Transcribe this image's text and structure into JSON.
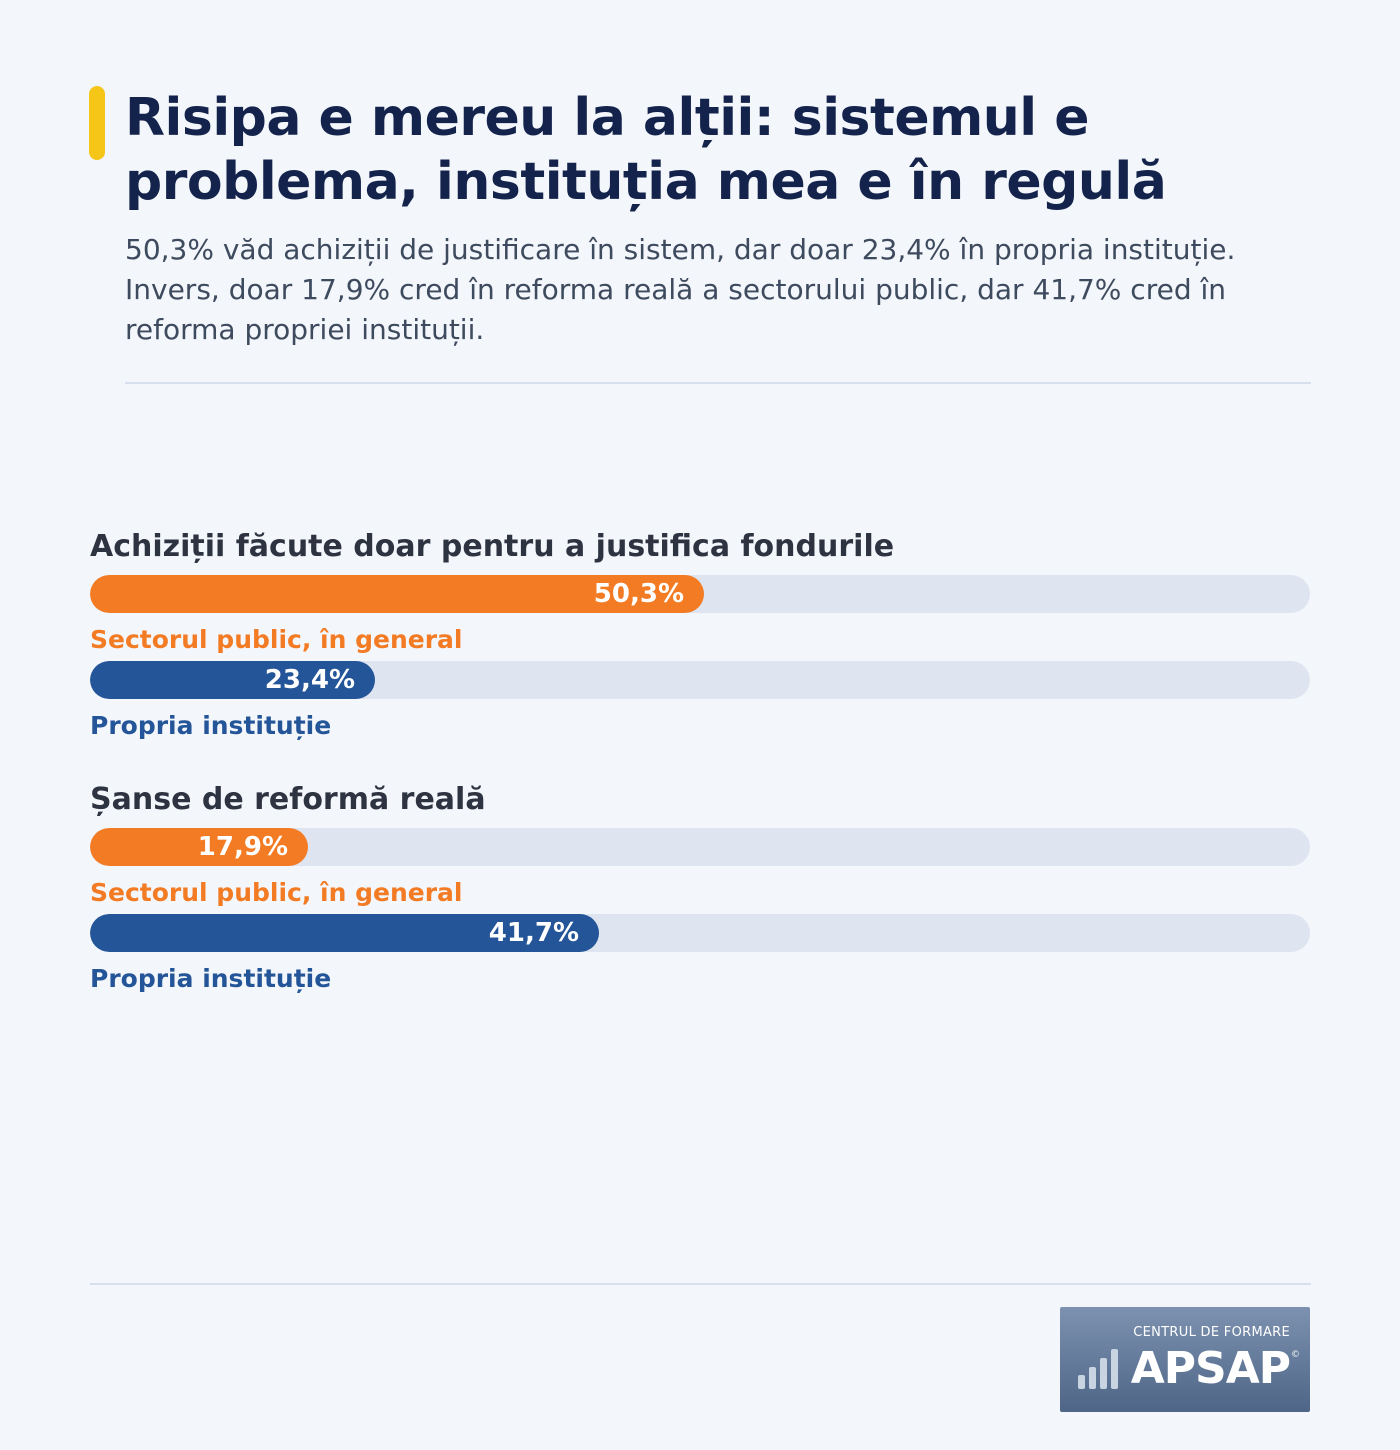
{
  "header": {
    "title": "Risipa e mereu la alții: sistemul e problema, instituția mea e în regulă",
    "subtitle": "50,3% văd achiziții de justificare în sistem, dar doar 23,4% în propria instituție. Invers, doar 17,9% cred în reforma reală a sectorului public, dar 41,7% cred în reforma propriei instituții."
  },
  "colors": {
    "accent": "#f5c518",
    "orange": "#f37b24",
    "blue": "#235598",
    "track": "#dee5f0",
    "title": "#14234b"
  },
  "chart_data": {
    "type": "bar",
    "orientation": "horizontal",
    "xlim": [
      0,
      100
    ],
    "unit": "%",
    "groups": [
      {
        "title": "Achiziții făcute doar pentru a justifica fondurile",
        "bars": [
          {
            "label": "Sectorul public, în general",
            "value": 50.3,
            "value_label": "50,3%",
            "color": "orange"
          },
          {
            "label": "Propria instituție",
            "value": 23.4,
            "value_label": "23,4%",
            "color": "blue"
          }
        ]
      },
      {
        "title": "Șanse de reformă reală",
        "bars": [
          {
            "label": "Sectorul public, în general",
            "value": 17.9,
            "value_label": "17,9%",
            "color": "orange"
          },
          {
            "label": "Propria instituție",
            "value": 41.7,
            "value_label": "41,7%",
            "color": "blue"
          }
        ]
      }
    ]
  },
  "logo": {
    "top_text": "CENTRUL DE FORMARE",
    "main_text": "APSAP",
    "copyright": "©",
    "icon": "bar-chart-icon"
  }
}
